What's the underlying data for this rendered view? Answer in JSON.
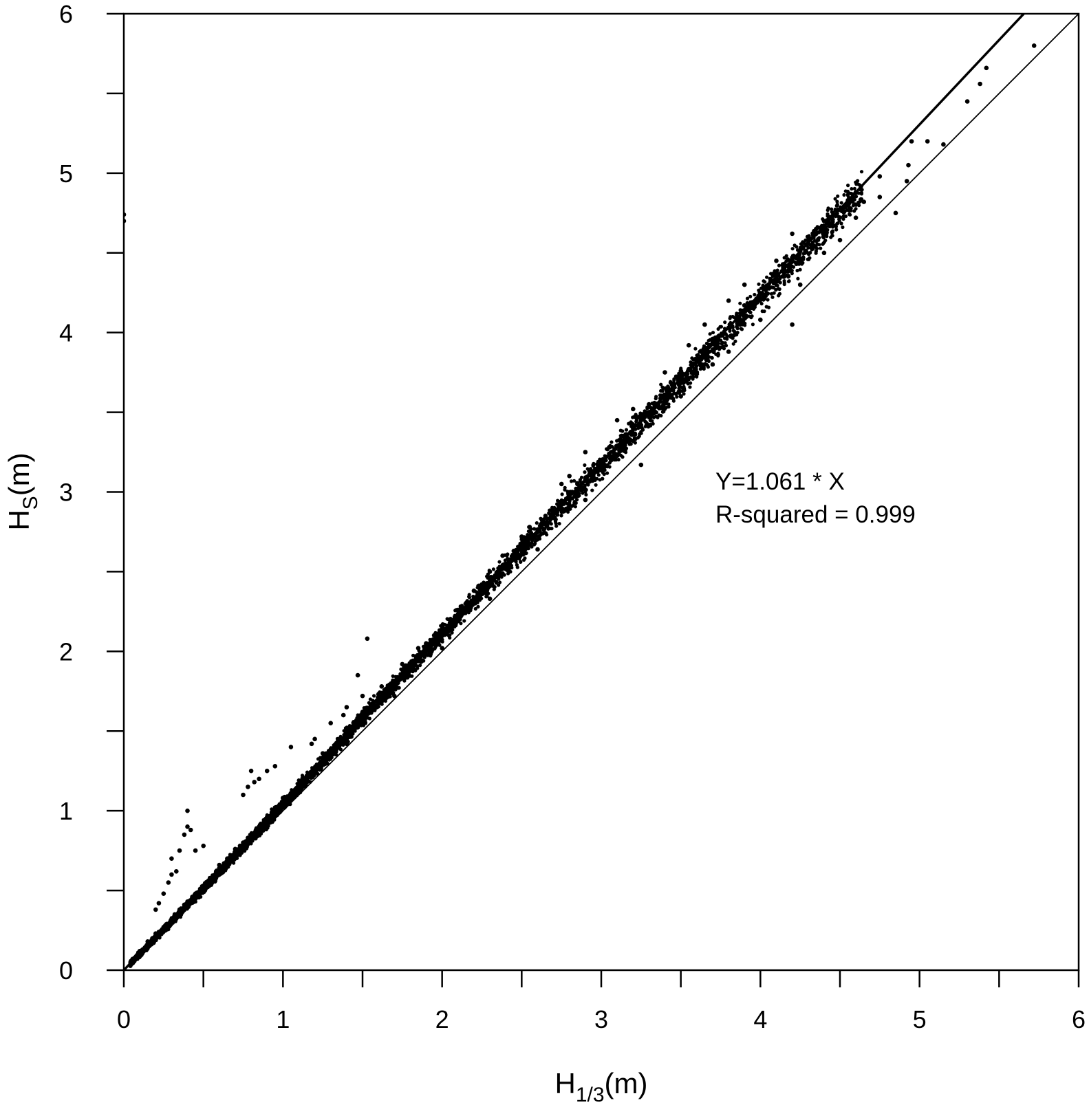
{
  "chart_data": {
    "type": "scatter",
    "title": "",
    "xlabel": {
      "main": "H",
      "sub": "1/3",
      "unit": "(m)"
    },
    "ylabel": {
      "main": "H",
      "sub": "S",
      "unit": "(m)"
    },
    "xlim": [
      0,
      6
    ],
    "ylim": [
      0,
      6
    ],
    "x_ticks": [
      "0",
      "1",
      "2",
      "3",
      "4",
      "5",
      "6"
    ],
    "y_ticks": [
      "0",
      "1",
      "2",
      "3",
      "4",
      "5",
      "6"
    ],
    "minor_step": 0.5,
    "grid": false,
    "fit_slope": 1.061,
    "annotations": [
      "Y=1.061 * X",
      "R-squared = 0.999"
    ],
    "reference_line": {
      "slope": 1.0
    },
    "series": [
      {
        "values": [
          [
            0.0,
            4.74
          ],
          [
            0.0,
            4.7
          ],
          [
            0.05,
            0.06
          ],
          [
            0.08,
            0.09
          ],
          [
            0.1,
            0.11
          ],
          [
            0.12,
            0.13
          ],
          [
            0.15,
            0.16
          ],
          [
            0.18,
            0.2
          ],
          [
            0.2,
            0.21
          ],
          [
            0.22,
            0.24
          ],
          [
            0.25,
            0.27
          ],
          [
            0.27,
            0.29
          ],
          [
            0.3,
            0.32
          ],
          [
            0.32,
            0.35
          ],
          [
            0.35,
            0.38
          ],
          [
            0.38,
            0.41
          ],
          [
            0.4,
            0.43
          ],
          [
            0.43,
            0.46
          ],
          [
            0.45,
            0.48
          ],
          [
            0.48,
            0.51
          ],
          [
            0.5,
            0.53
          ],
          [
            0.53,
            0.56
          ],
          [
            0.55,
            0.58
          ],
          [
            0.58,
            0.62
          ],
          [
            0.6,
            0.64
          ],
          [
            0.63,
            0.67
          ],
          [
            0.65,
            0.69
          ],
          [
            0.68,
            0.72
          ],
          [
            0.7,
            0.74
          ],
          [
            0.73,
            0.78
          ],
          [
            0.75,
            0.8
          ],
          [
            0.78,
            0.83
          ],
          [
            0.8,
            0.85
          ],
          [
            0.83,
            0.88
          ],
          [
            0.85,
            0.9
          ],
          [
            0.88,
            0.93
          ],
          [
            0.9,
            0.96
          ],
          [
            0.93,
            0.99
          ],
          [
            0.95,
            1.01
          ],
          [
            0.98,
            1.04
          ],
          [
            1.0,
            1.06
          ],
          [
            1.05,
            1.11
          ],
          [
            1.1,
            1.17
          ],
          [
            1.15,
            1.22
          ],
          [
            1.2,
            1.27
          ],
          [
            1.25,
            1.33
          ],
          [
            1.3,
            1.38
          ],
          [
            1.35,
            1.43
          ],
          [
            1.4,
            1.49
          ],
          [
            1.45,
            1.54
          ],
          [
            1.5,
            1.59
          ],
          [
            1.55,
            1.64
          ],
          [
            1.6,
            1.7
          ],
          [
            1.65,
            1.75
          ],
          [
            1.7,
            1.8
          ],
          [
            1.75,
            1.86
          ],
          [
            1.8,
            1.91
          ],
          [
            1.85,
            1.96
          ],
          [
            1.9,
            2.02
          ],
          [
            1.95,
            2.07
          ],
          [
            2.0,
            2.12
          ],
          [
            2.05,
            2.18
          ],
          [
            2.1,
            2.23
          ],
          [
            2.15,
            2.28
          ],
          [
            2.2,
            2.33
          ],
          [
            2.25,
            2.39
          ],
          [
            2.3,
            2.44
          ],
          [
            2.35,
            2.49
          ],
          [
            2.4,
            2.55
          ],
          [
            2.45,
            2.6
          ],
          [
            2.5,
            2.65
          ],
          [
            2.55,
            2.71
          ],
          [
            2.6,
            2.76
          ],
          [
            2.65,
            2.81
          ],
          [
            2.7,
            2.86
          ],
          [
            2.75,
            2.92
          ],
          [
            2.8,
            2.97
          ],
          [
            2.85,
            3.02
          ],
          [
            2.9,
            3.08
          ],
          [
            2.95,
            3.13
          ],
          [
            3.0,
            3.18
          ],
          [
            3.05,
            3.24
          ],
          [
            3.1,
            3.29
          ],
          [
            3.15,
            3.34
          ],
          [
            3.2,
            3.4
          ],
          [
            3.25,
            3.45
          ],
          [
            3.3,
            3.5
          ],
          [
            3.35,
            3.55
          ],
          [
            3.4,
            3.61
          ],
          [
            3.45,
            3.66
          ],
          [
            3.5,
            3.71
          ],
          [
            3.55,
            3.77
          ],
          [
            3.6,
            3.82
          ],
          [
            3.65,
            3.87
          ],
          [
            3.7,
            3.93
          ],
          [
            3.75,
            3.98
          ],
          [
            3.8,
            4.03
          ],
          [
            3.85,
            4.08
          ],
          [
            3.9,
            4.14
          ],
          [
            3.95,
            4.19
          ],
          [
            4.0,
            4.24
          ],
          [
            4.05,
            4.3
          ],
          [
            4.1,
            4.35
          ],
          [
            4.15,
            4.4
          ],
          [
            4.2,
            4.46
          ],
          [
            4.25,
            4.51
          ],
          [
            4.3,
            4.56
          ],
          [
            4.35,
            4.62
          ],
          [
            4.4,
            4.67
          ],
          [
            4.45,
            4.72
          ],
          [
            4.5,
            4.77
          ],
          [
            4.55,
            4.83
          ],
          [
            4.6,
            4.88
          ],
          [
            0.3,
            0.6
          ],
          [
            0.35,
            0.75
          ],
          [
            0.38,
            0.85
          ],
          [
            0.4,
            0.9
          ],
          [
            0.4,
            1.0
          ],
          [
            0.42,
            0.88
          ],
          [
            0.45,
            0.75
          ],
          [
            0.5,
            0.78
          ],
          [
            0.3,
            0.7
          ],
          [
            0.28,
            0.55
          ],
          [
            0.22,
            0.42
          ],
          [
            0.2,
            0.38
          ],
          [
            0.25,
            0.48
          ],
          [
            0.33,
            0.62
          ],
          [
            0.8,
            1.25
          ],
          [
            0.82,
            1.18
          ],
          [
            0.75,
            1.1
          ],
          [
            0.78,
            1.15
          ],
          [
            0.85,
            1.2
          ],
          [
            0.9,
            1.25
          ],
          [
            0.95,
            1.28
          ],
          [
            1.05,
            1.4
          ],
          [
            1.18,
            1.42
          ],
          [
            1.2,
            1.45
          ],
          [
            1.4,
            1.65
          ],
          [
            1.38,
            1.6
          ],
          [
            1.5,
            1.72
          ],
          [
            1.53,
            2.08
          ],
          [
            1.47,
            1.85
          ],
          [
            1.3,
            1.55
          ],
          [
            1.62,
            1.78
          ],
          [
            1.75,
            1.92
          ],
          [
            1.85,
            2.02
          ],
          [
            1.95,
            2.1
          ],
          [
            2.05,
            2.2
          ],
          [
            2.2,
            2.38
          ],
          [
            2.3,
            2.5
          ],
          [
            2.38,
            2.6
          ],
          [
            2.5,
            2.72
          ],
          [
            2.55,
            2.78
          ],
          [
            2.75,
            3.05
          ],
          [
            2.8,
            3.1
          ],
          [
            2.9,
            3.25
          ],
          [
            3.1,
            3.45
          ],
          [
            3.2,
            3.52
          ],
          [
            3.4,
            3.75
          ],
          [
            3.55,
            3.92
          ],
          [
            3.65,
            4.05
          ],
          [
            3.8,
            4.2
          ],
          [
            3.9,
            4.3
          ],
          [
            4.1,
            4.45
          ],
          [
            4.2,
            4.62
          ],
          [
            4.3,
            4.6
          ],
          [
            4.4,
            4.7
          ],
          [
            4.55,
            4.82
          ],
          [
            4.65,
            4.82
          ],
          [
            4.75,
            4.98
          ],
          [
            0.6,
            0.6
          ],
          [
            0.9,
            0.9
          ],
          [
            1.1,
            1.12
          ],
          [
            1.4,
            1.42
          ],
          [
            1.7,
            1.72
          ],
          [
            2.0,
            2.02
          ],
          [
            2.3,
            2.33
          ],
          [
            2.6,
            2.64
          ],
          [
            2.9,
            2.95
          ],
          [
            3.25,
            3.17
          ],
          [
            3.5,
            3.6
          ],
          [
            3.7,
            3.8
          ],
          [
            3.6,
            3.75
          ],
          [
            3.8,
            3.88
          ],
          [
            4.0,
            4.08
          ],
          [
            4.2,
            4.05
          ],
          [
            4.25,
            4.3
          ],
          [
            4.4,
            4.5
          ],
          [
            4.5,
            4.58
          ],
          [
            4.6,
            4.72
          ],
          [
            4.75,
            4.85
          ],
          [
            4.85,
            4.75
          ],
          [
            4.92,
            4.95
          ],
          [
            4.93,
            5.05
          ],
          [
            4.95,
            5.2
          ],
          [
            5.05,
            5.2
          ],
          [
            5.15,
            5.18
          ],
          [
            5.3,
            5.45
          ],
          [
            5.38,
            5.56
          ],
          [
            5.42,
            5.66
          ],
          [
            5.72,
            5.8
          ],
          [
            0.1,
            0.12
          ],
          [
            0.15,
            0.18
          ],
          [
            0.2,
            0.23
          ],
          [
            0.6,
            0.66
          ],
          [
            0.65,
            0.7
          ],
          [
            0.7,
            0.76
          ],
          [
            0.95,
            1.02
          ],
          [
            1.0,
            1.08
          ],
          [
            1.25,
            1.36
          ],
          [
            1.5,
            1.62
          ],
          [
            1.6,
            1.73
          ],
          [
            1.9,
            2.05
          ],
          [
            2.1,
            2.26
          ],
          [
            2.25,
            2.42
          ],
          [
            2.45,
            2.63
          ],
          [
            2.65,
            2.85
          ],
          [
            2.85,
            3.05
          ],
          [
            3.05,
            3.28
          ],
          [
            3.3,
            3.55
          ],
          [
            3.5,
            3.76
          ],
          [
            3.7,
            3.96
          ],
          [
            3.9,
            4.17
          ],
          [
            4.15,
            4.42
          ],
          [
            4.35,
            4.65
          ]
        ]
      }
    ]
  }
}
